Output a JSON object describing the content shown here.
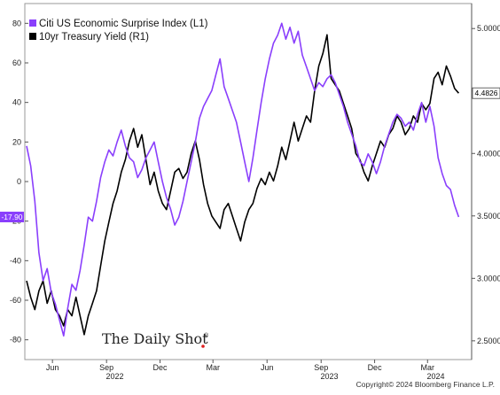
{
  "chart_data": {
    "type": "line",
    "title": "",
    "legend": {
      "placement": "top-left",
      "entries": [
        {
          "label": "Citi US Economic Surprise Index (L1)",
          "color": "#8a3ffc"
        },
        {
          "label": "10yr Treasury Yield (R1)",
          "color": "#000000"
        }
      ]
    },
    "x_ticks": [
      {
        "label": "Jun",
        "date": "2021-06-01"
      },
      {
        "label": "Sep",
        "date": "2021-09-01"
      },
      {
        "label": "Dec",
        "date": "2021-12-01"
      },
      {
        "label": "Mar",
        "date": "2022-03-01"
      },
      {
        "label": "Jun",
        "date": "2022-06-01"
      },
      {
        "label": "Sep",
        "date": "2022-09-01"
      },
      {
        "label": "Dec",
        "date": "2022-12-01"
      },
      {
        "label": "Mar",
        "date": "2023-03-01"
      }
    ],
    "year_labels": [
      {
        "label": "2022",
        "date": "2021-09-15"
      },
      {
        "label": "2023",
        "date": "2022-09-15"
      },
      {
        "label": "2024",
        "date": "2023-03-15"
      }
    ],
    "x_range": [
      "2021-04-15",
      "2023-05-15"
    ],
    "y_left": {
      "range": [
        -90,
        90
      ],
      "ticks": [
        80,
        60,
        40,
        20,
        0,
        -20,
        -40,
        -60,
        -80
      ]
    },
    "y_right": {
      "range": [
        2.35,
        5.2
      ],
      "ticks": [
        5.0,
        4.5,
        4.0,
        3.5,
        3.0,
        2.5
      ],
      "tick_labels": [
        "5.0000",
        "4.5000",
        "4.0000",
        "3.5000",
        "3.0000",
        "2.5000"
      ]
    },
    "grid": false,
    "last_values": {
      "left": "-17.90",
      "right": "4.4826"
    },
    "series": [
      {
        "name": "Citi US Economic Surprise Index (L1)",
        "axis": "left",
        "color": "#8a3ffc",
        "points": [
          [
            "2021-04-18",
            18
          ],
          [
            "2021-04-25",
            8
          ],
          [
            "2021-05-02",
            -10
          ],
          [
            "2021-05-09",
            -36
          ],
          [
            "2021-05-16",
            -50
          ],
          [
            "2021-05-23",
            -44
          ],
          [
            "2021-05-30",
            -56
          ],
          [
            "2021-06-06",
            -62
          ],
          [
            "2021-06-13",
            -70
          ],
          [
            "2021-06-20",
            -78
          ],
          [
            "2021-06-27",
            -64
          ],
          [
            "2021-07-04",
            -52
          ],
          [
            "2021-07-11",
            -55
          ],
          [
            "2021-07-18",
            -45
          ],
          [
            "2021-07-25",
            -32
          ],
          [
            "2021-08-01",
            -18
          ],
          [
            "2021-08-08",
            -20
          ],
          [
            "2021-08-15",
            -10
          ],
          [
            "2021-08-22",
            2
          ],
          [
            "2021-08-29",
            10
          ],
          [
            "2021-09-05",
            16
          ],
          [
            "2021-09-12",
            13
          ],
          [
            "2021-09-19",
            20
          ],
          [
            "2021-09-26",
            26
          ],
          [
            "2021-10-03",
            18
          ],
          [
            "2021-10-10",
            12
          ],
          [
            "2021-10-17",
            10
          ],
          [
            "2021-10-24",
            2
          ],
          [
            "2021-10-31",
            6
          ],
          [
            "2021-11-07",
            12
          ],
          [
            "2021-11-14",
            16
          ],
          [
            "2021-11-21",
            20
          ],
          [
            "2021-11-28",
            10
          ],
          [
            "2021-12-05",
            0
          ],
          [
            "2021-12-12",
            -8
          ],
          [
            "2021-12-19",
            -14
          ],
          [
            "2021-12-26",
            -22
          ],
          [
            "2022-01-02",
            -18
          ],
          [
            "2022-01-09",
            -10
          ],
          [
            "2022-01-16",
            0
          ],
          [
            "2022-01-23",
            10
          ],
          [
            "2022-01-30",
            20
          ],
          [
            "2022-02-06",
            32
          ],
          [
            "2022-02-13",
            38
          ],
          [
            "2022-02-20",
            42
          ],
          [
            "2022-02-27",
            46
          ],
          [
            "2022-03-06",
            54
          ],
          [
            "2022-03-13",
            62
          ],
          [
            "2022-03-20",
            48
          ],
          [
            "2022-03-27",
            42
          ],
          [
            "2022-04-03",
            36
          ],
          [
            "2022-04-10",
            30
          ],
          [
            "2022-04-17",
            20
          ],
          [
            "2022-04-24",
            10
          ],
          [
            "2022-05-01",
            0
          ],
          [
            "2022-05-08",
            12
          ],
          [
            "2022-05-15",
            26
          ],
          [
            "2022-05-22",
            40
          ],
          [
            "2022-05-29",
            52
          ],
          [
            "2022-06-05",
            62
          ],
          [
            "2022-06-12",
            70
          ],
          [
            "2022-06-19",
            74
          ],
          [
            "2022-06-26",
            80
          ],
          [
            "2022-07-03",
            72
          ],
          [
            "2022-07-10",
            78
          ],
          [
            "2022-07-17",
            70
          ],
          [
            "2022-07-24",
            76
          ],
          [
            "2022-07-31",
            64
          ],
          [
            "2022-08-07",
            58
          ],
          [
            "2022-08-14",
            52
          ],
          [
            "2022-08-21",
            46
          ],
          [
            "2022-08-28",
            50
          ],
          [
            "2022-09-04",
            48
          ],
          [
            "2022-09-11",
            52
          ],
          [
            "2022-09-18",
            54
          ],
          [
            "2022-09-25",
            50
          ],
          [
            "2022-10-02",
            44
          ],
          [
            "2022-10-09",
            38
          ],
          [
            "2022-10-16",
            30
          ],
          [
            "2022-10-23",
            24
          ],
          [
            "2022-10-30",
            18
          ],
          [
            "2022-11-06",
            10
          ],
          [
            "2022-11-13",
            8
          ],
          [
            "2022-11-20",
            14
          ],
          [
            "2022-11-27",
            10
          ],
          [
            "2022-12-04",
            4
          ],
          [
            "2022-12-11",
            10
          ],
          [
            "2022-12-18",
            18
          ],
          [
            "2022-12-25",
            24
          ],
          [
            "2023-01-01",
            30
          ],
          [
            "2023-01-08",
            34
          ],
          [
            "2023-01-15",
            32
          ],
          [
            "2023-01-22",
            28
          ],
          [
            "2023-01-29",
            30
          ],
          [
            "2023-02-05",
            26
          ],
          [
            "2023-02-12",
            34
          ],
          [
            "2023-02-19",
            40
          ],
          [
            "2023-02-26",
            30
          ],
          [
            "2023-03-05",
            38
          ],
          [
            "2023-03-12",
            28
          ],
          [
            "2023-03-19",
            12
          ],
          [
            "2023-03-26",
            4
          ],
          [
            "2023-04-02",
            -2
          ],
          [
            "2023-04-09",
            -4
          ],
          [
            "2023-04-16",
            -12
          ],
          [
            "2023-04-23",
            -17.9
          ]
        ]
      },
      {
        "name": "10yr Treasury Yield (R1)",
        "axis": "right",
        "color": "#000000",
        "points": [
          [
            "2021-04-18",
            2.98
          ],
          [
            "2021-04-25",
            2.85
          ],
          [
            "2021-05-02",
            2.75
          ],
          [
            "2021-05-09",
            2.9
          ],
          [
            "2021-05-16",
            2.98
          ],
          [
            "2021-05-23",
            2.8
          ],
          [
            "2021-05-30",
            2.9
          ],
          [
            "2021-06-06",
            2.75
          ],
          [
            "2021-06-13",
            2.7
          ],
          [
            "2021-06-20",
            2.62
          ],
          [
            "2021-06-27",
            2.75
          ],
          [
            "2021-07-04",
            2.7
          ],
          [
            "2021-07-11",
            2.85
          ],
          [
            "2021-07-18",
            2.7
          ],
          [
            "2021-07-25",
            2.55
          ],
          [
            "2021-08-01",
            2.7
          ],
          [
            "2021-08-08",
            2.8
          ],
          [
            "2021-08-15",
            2.9
          ],
          [
            "2021-08-22",
            3.1
          ],
          [
            "2021-08-29",
            3.3
          ],
          [
            "2021-09-05",
            3.45
          ],
          [
            "2021-09-12",
            3.6
          ],
          [
            "2021-09-19",
            3.7
          ],
          [
            "2021-09-26",
            3.85
          ],
          [
            "2021-10-03",
            3.95
          ],
          [
            "2021-10-10",
            4.1
          ],
          [
            "2021-10-17",
            4.2
          ],
          [
            "2021-10-24",
            4.05
          ],
          [
            "2021-10-31",
            4.15
          ],
          [
            "2021-11-07",
            3.95
          ],
          [
            "2021-11-14",
            3.75
          ],
          [
            "2021-11-21",
            3.85
          ],
          [
            "2021-11-28",
            3.7
          ],
          [
            "2021-12-05",
            3.6
          ],
          [
            "2021-12-12",
            3.55
          ],
          [
            "2021-12-19",
            3.7
          ],
          [
            "2021-12-26",
            3.85
          ],
          [
            "2022-01-02",
            3.88
          ],
          [
            "2022-01-09",
            3.8
          ],
          [
            "2022-01-16",
            3.85
          ],
          [
            "2022-01-23",
            4.0
          ],
          [
            "2022-01-30",
            4.1
          ],
          [
            "2022-02-06",
            3.95
          ],
          [
            "2022-02-13",
            3.75
          ],
          [
            "2022-02-20",
            3.6
          ],
          [
            "2022-02-27",
            3.5
          ],
          [
            "2022-03-06",
            3.45
          ],
          [
            "2022-03-13",
            3.4
          ],
          [
            "2022-03-20",
            3.55
          ],
          [
            "2022-03-27",
            3.6
          ],
          [
            "2022-04-03",
            3.5
          ],
          [
            "2022-04-10",
            3.4
          ],
          [
            "2022-04-17",
            3.3
          ],
          [
            "2022-04-24",
            3.45
          ],
          [
            "2022-05-01",
            3.55
          ],
          [
            "2022-05-08",
            3.6
          ],
          [
            "2022-05-15",
            3.72
          ],
          [
            "2022-05-22",
            3.8
          ],
          [
            "2022-05-29",
            3.75
          ],
          [
            "2022-06-05",
            3.85
          ],
          [
            "2022-06-12",
            3.78
          ],
          [
            "2022-06-19",
            3.9
          ],
          [
            "2022-06-26",
            4.05
          ],
          [
            "2022-07-03",
            3.95
          ],
          [
            "2022-07-10",
            4.1
          ],
          [
            "2022-07-17",
            4.25
          ],
          [
            "2022-07-24",
            4.1
          ],
          [
            "2022-07-31",
            4.2
          ],
          [
            "2022-08-07",
            4.3
          ],
          [
            "2022-08-14",
            4.25
          ],
          [
            "2022-08-21",
            4.5
          ],
          [
            "2022-08-28",
            4.7
          ],
          [
            "2022-09-04",
            4.8
          ],
          [
            "2022-09-11",
            4.95
          ],
          [
            "2022-09-18",
            4.6
          ],
          [
            "2022-09-25",
            4.55
          ],
          [
            "2022-10-02",
            4.5
          ],
          [
            "2022-10-09",
            4.4
          ],
          [
            "2022-10-16",
            4.3
          ],
          [
            "2022-10-23",
            4.2
          ],
          [
            "2022-10-30",
            4.0
          ],
          [
            "2022-11-06",
            3.95
          ],
          [
            "2022-11-13",
            3.85
          ],
          [
            "2022-11-20",
            3.78
          ],
          [
            "2022-11-27",
            3.9
          ],
          [
            "2022-12-04",
            4.0
          ],
          [
            "2022-12-11",
            4.1
          ],
          [
            "2022-12-18",
            4.05
          ],
          [
            "2022-12-25",
            4.15
          ],
          [
            "2023-01-01",
            4.2
          ],
          [
            "2023-01-08",
            4.3
          ],
          [
            "2023-01-15",
            4.25
          ],
          [
            "2023-01-22",
            4.15
          ],
          [
            "2023-01-29",
            4.2
          ],
          [
            "2023-02-05",
            4.3
          ],
          [
            "2023-02-12",
            4.25
          ],
          [
            "2023-02-19",
            4.4
          ],
          [
            "2023-02-26",
            4.35
          ],
          [
            "2023-03-05",
            4.4
          ],
          [
            "2023-03-12",
            4.6
          ],
          [
            "2023-03-19",
            4.65
          ],
          [
            "2023-03-26",
            4.55
          ],
          [
            "2023-04-02",
            4.7
          ],
          [
            "2023-04-09",
            4.62
          ],
          [
            "2023-04-16",
            4.52
          ],
          [
            "2023-04-23",
            4.4826
          ]
        ]
      }
    ]
  },
  "watermark": "The Daily Shot",
  "watermark_mark": "®",
  "copyright": "Copyright© 2024 Bloomberg Finance L.P."
}
